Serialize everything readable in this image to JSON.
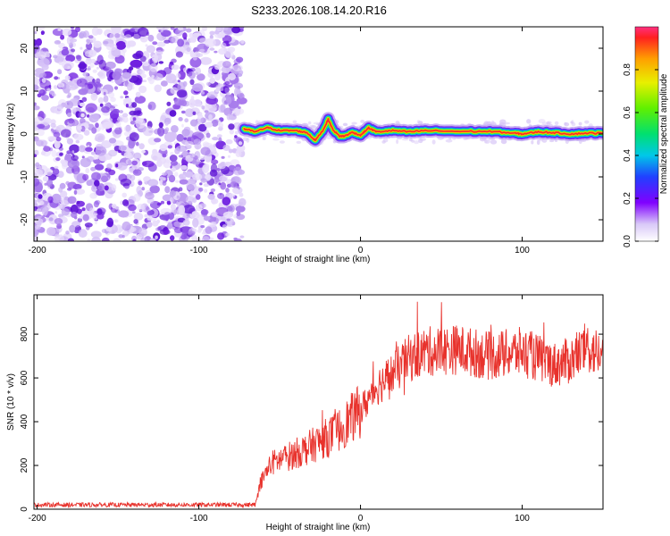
{
  "title": "S233.2026.108.14.20.R16",
  "chart_data": [
    {
      "type": "heatmap",
      "xlabel": "Height of straight line (km)",
      "ylabel": "Frequency (Hz)",
      "xlim": [
        -202,
        150
      ],
      "ylim": [
        -25,
        25
      ],
      "xticks": [
        -200,
        -100,
        0,
        100
      ],
      "yticks": [
        -20,
        -10,
        0,
        10,
        20
      ],
      "noise_region_x": [
        -202,
        -73
      ],
      "signal_track": {
        "x": [
          -72,
          -65,
          -58,
          -50,
          -40,
          -33,
          -28,
          -23,
          -20,
          -17,
          -13,
          -10,
          -5,
          0,
          5,
          10,
          20,
          30,
          40,
          60,
          80,
          95,
          100,
          110,
          120,
          130,
          140,
          150
        ],
        "freq": [
          1.2,
          0.5,
          1.5,
          0.8,
          0.8,
          0.3,
          -1.5,
          1.0,
          3.4,
          1.0,
          -0.5,
          -0.5,
          0.4,
          -0.3,
          1.4,
          0.5,
          0.8,
          0.5,
          0.8,
          0.6,
          0.6,
          0.2,
          0.0,
          0.5,
          0.3,
          0.0,
          0.2,
          0.2
        ]
      },
      "colorbar": {
        "label": "Normalized spectral amplitude",
        "range": [
          0,
          1
        ],
        "ticks": [
          0.0,
          0.2,
          0.4,
          0.6,
          0.8
        ]
      }
    },
    {
      "type": "line",
      "xlabel": "Height of straight line (km)",
      "ylabel": "SNR (10 * v/v)",
      "xlim": [
        -202,
        150
      ],
      "ylim": [
        0,
        980
      ],
      "xticks": [
        -200,
        -100,
        0,
        100
      ],
      "yticks": [
        0,
        200,
        400,
        600,
        800
      ],
      "color": "#e8322c",
      "series_profile": {
        "x": [
          -202,
          -130,
          -70,
          -65,
          -62,
          -55,
          -45,
          -35,
          -25,
          -15,
          -5,
          0,
          10,
          20,
          30,
          40,
          60,
          80,
          100,
          120,
          130,
          140,
          150
        ],
        "y": [
          20,
          20,
          20,
          20,
          120,
          210,
          240,
          270,
          310,
          350,
          420,
          450,
          560,
          620,
          690,
          720,
          730,
          700,
          720,
          660,
          680,
          740,
          700
        ]
      }
    }
  ]
}
